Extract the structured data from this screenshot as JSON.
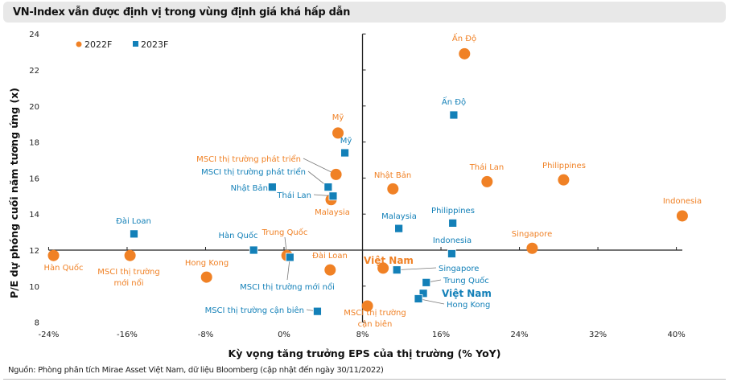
{
  "title": "VN-Index vẫn được định vị trong vùng định giá khá hấp dẫn",
  "footer": "Nguồn: Phòng phân tích Mirae Asset Việt Nam, dữ liệu Bloomberg (cập nhật đến ngày 30/11/2022)",
  "chart_data": {
    "type": "scatter",
    "xlabel": "Kỳ vọng tăng trưởng EPS của thị trường (% YoY)",
    "ylabel": "P/E dự phóng cuối năm tương ứng (x)",
    "xlim": [
      -24,
      42
    ],
    "ylim": [
      8,
      24
    ],
    "x_axis_crosses_y_at": 12,
    "y_axis_crosses_x_at": 8,
    "xticks": [
      "-24%",
      "-16%",
      "-8%",
      "0%",
      "8%",
      "16%",
      "24%",
      "32%",
      "40%"
    ],
    "xtick_values": [
      -24,
      -16,
      -8,
      0,
      8,
      16,
      24,
      32,
      40
    ],
    "yticks": [
      "8",
      "10",
      "12",
      "14",
      "16",
      "18",
      "20",
      "22",
      "24"
    ],
    "ytick_values": [
      8,
      10,
      12,
      14,
      16,
      18,
      20,
      22,
      24
    ],
    "grid": false,
    "legend_position": "top-left",
    "series": [
      {
        "name": "2022F",
        "marker": "circle",
        "color": "#f08125",
        "points": [
          {
            "label": "Ấn Độ",
            "x": 18.4,
            "y": 22.9
          },
          {
            "label": "Mỹ",
            "x": 5.5,
            "y": 18.5
          },
          {
            "label": "MSCI thị trường phát triển",
            "x": 5.3,
            "y": 16.2
          },
          {
            "label": "Malaysia",
            "x": 4.8,
            "y": 14.8
          },
          {
            "label": "Nhật Bản",
            "x": 11.1,
            "y": 15.4
          },
          {
            "label": "Thái Lan",
            "x": 20.7,
            "y": 15.8
          },
          {
            "label": "Philippines",
            "x": 28.5,
            "y": 15.9
          },
          {
            "label": "Indonesia",
            "x": 40.6,
            "y": 13.9
          },
          {
            "label": "Singapore",
            "x": 25.3,
            "y": 12.1
          },
          {
            "label": "Hàn Quốc",
            "x": -23.5,
            "y": 11.7
          },
          {
            "label": "MSCI thị trường mới nổi",
            "x": -15.7,
            "y": 11.7
          },
          {
            "label": "Hong Kong",
            "x": -7.9,
            "y": 10.5
          },
          {
            "label": "Trung Quốc",
            "x": 0.3,
            "y": 11.7
          },
          {
            "label": "Đài Loan",
            "x": 4.7,
            "y": 10.9
          },
          {
            "label": "Việt Nam",
            "x": 10.1,
            "y": 11.0
          },
          {
            "label": "MSCI thị trường cận biên",
            "x": 8.5,
            "y": 8.9
          }
        ]
      },
      {
        "name": "2023F",
        "marker": "square",
        "color": "#1380b8",
        "points": [
          {
            "label": "Ấn Độ",
            "x": 17.3,
            "y": 19.5
          },
          {
            "label": "Mỹ",
            "x": 6.2,
            "y": 17.4
          },
          {
            "label": "MSCI thị trường phát triển",
            "x": 4.5,
            "y": 15.5
          },
          {
            "label": "Nhật Bản",
            "x": -1.2,
            "y": 15.5
          },
          {
            "label": "Thái Lan",
            "x": 5.0,
            "y": 15.0
          },
          {
            "label": "Đài Loan",
            "x": -15.3,
            "y": 12.9
          },
          {
            "label": "Hàn Quốc",
            "x": -3.1,
            "y": 12.0
          },
          {
            "label": "MSCI thị trường mới nổi",
            "x": 0.6,
            "y": 11.6
          },
          {
            "label": "MSCI thị trường cận biên",
            "x": 3.4,
            "y": 8.6
          },
          {
            "label": "Malaysia",
            "x": 11.7,
            "y": 13.2
          },
          {
            "label": "Philippines",
            "x": 17.2,
            "y": 13.5
          },
          {
            "label": "Indonesia",
            "x": 17.1,
            "y": 11.8
          },
          {
            "label": "Singapore",
            "x": 11.5,
            "y": 10.9
          },
          {
            "label": "Trung Quốc",
            "x": 14.5,
            "y": 10.2
          },
          {
            "label": "Việt Nam",
            "x": 14.2,
            "y": 9.6
          },
          {
            "label": "Hong Kong",
            "x": 13.7,
            "y": 9.3
          }
        ]
      }
    ]
  }
}
